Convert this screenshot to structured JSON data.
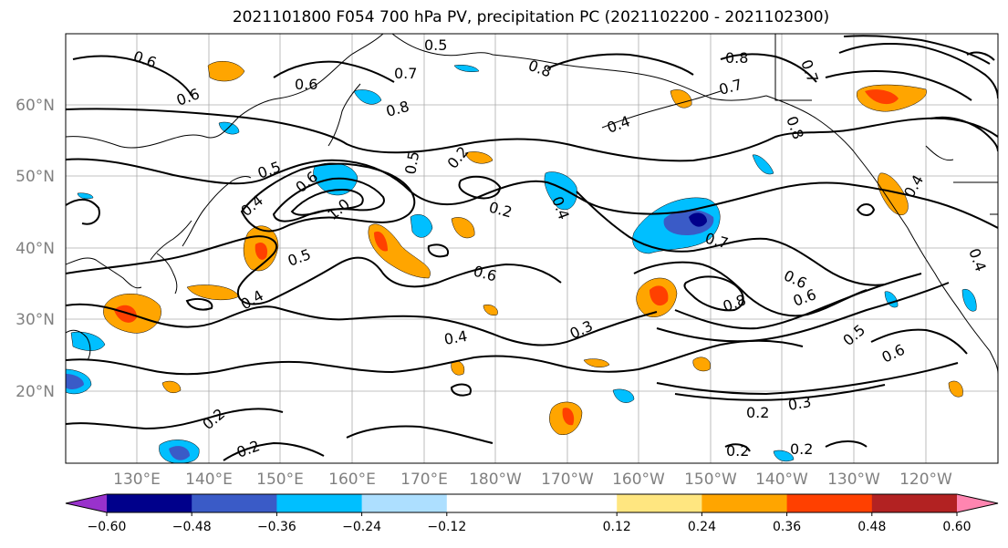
{
  "title": "2021101800 F054 700 hPa PV, precipitation PC (2021102200 - 2021102300)",
  "lat_labels": [
    "60°N",
    "50°N",
    "40°N",
    "30°N",
    "20°N"
  ],
  "lon_labels": [
    "130°E",
    "140°E",
    "150°E",
    "160°E",
    "170°E",
    "180°W",
    "170°W",
    "160°W",
    "150°W",
    "140°W",
    "130°W",
    "120°W"
  ],
  "contour_labels": [
    "0.6",
    "0.6",
    "0.7",
    "0.6",
    "0.5",
    "0.8",
    "0.8",
    "0.7",
    "0.5",
    "0.4",
    "0.8",
    "0.4",
    "0.5",
    "0.6",
    "1.0",
    "0.4",
    "0.5",
    "0.2",
    "0.2",
    "0.6",
    "0.4",
    "0.4",
    "0.7",
    "0.6",
    "0.8",
    "0.6",
    "0.3",
    "0.4",
    "0.5",
    "0.6",
    "0.2",
    "0.3",
    "0.2",
    "0.2",
    "0.2",
    "0.8",
    "0.7",
    "0.2",
    "0.4"
  ],
  "colorbar": {
    "colors": [
      "#9932CC",
      "#00008B",
      "#3A5BC7",
      "#00BFFF",
      "#ADDFFF",
      "#FFFFFF",
      "#FFFFFF",
      "#FFE680",
      "#FFA500",
      "#FF4000",
      "#B22222",
      "#FF85B0"
    ],
    "tick_labels": [
      "−0.60",
      "−0.48",
      "−0.36",
      "−0.24",
      "−0.12",
      "0.12",
      "0.24",
      "0.36",
      "0.48",
      "0.60"
    ]
  }
}
